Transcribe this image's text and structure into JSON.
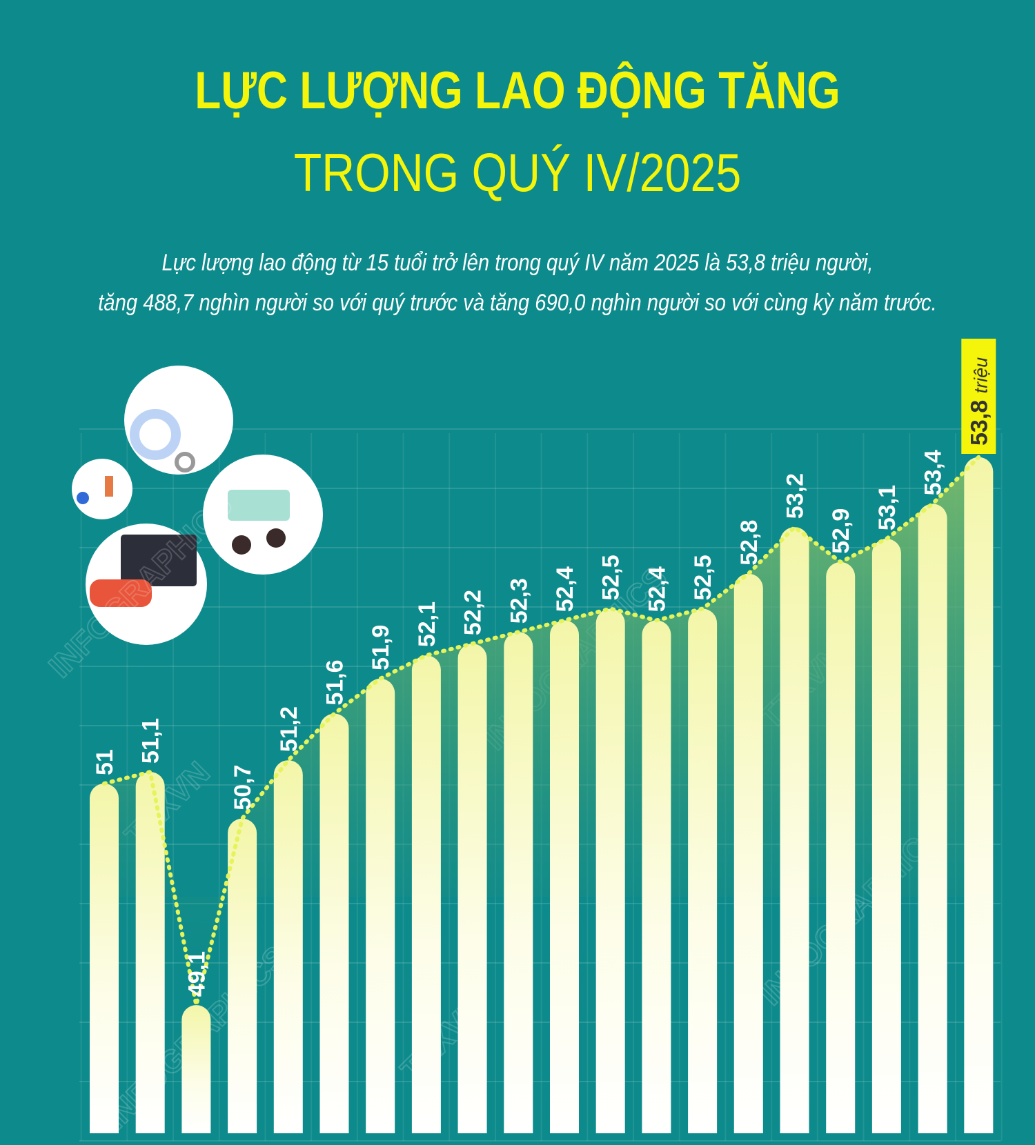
{
  "title": {
    "line1": "LỰC LƯỢNG LAO ĐỘNG TĂNG",
    "line2": "TRONG QUÝ IV/2025"
  },
  "subtitle": {
    "line1": "Lực lượng lao động từ 15 tuổi trở lên trong quý IV năm 2025 là 53,8 triệu người,",
    "line2": "tăng 488,7 nghìn người so với quý trước và tăng 690,0 nghìn người so với cùng kỳ năm trước."
  },
  "watermark": [
    "INFOGRAPHICS",
    "TTXVN"
  ],
  "colors": {
    "background": "#0d8a8b",
    "title": "#f4f50a",
    "highlight": "#f4f50a",
    "area": "#6db36a",
    "line": "#e6f35a"
  },
  "chart_data": {
    "type": "bar",
    "categories": [],
    "values": [
      51,
      51.1,
      49.1,
      50.7,
      51.2,
      51.6,
      51.9,
      52.1,
      52.2,
      52.3,
      52.4,
      52.5,
      52.4,
      52.5,
      52.8,
      53.2,
      52.9,
      53.1,
      53.4,
      53.8
    ],
    "labels": [
      "51",
      "51,1",
      "49,1",
      "50,7",
      "51,2",
      "51,6",
      "51,9",
      "52,1",
      "52,2",
      "52,3",
      "52,4",
      "52,5",
      "52,4",
      "52,5",
      "52,8",
      "53,2",
      "52,9",
      "53,1",
      "53,4",
      "53,8"
    ],
    "highlight_unit": "triệu",
    "ylim": [
      48,
      54
    ],
    "grid": true,
    "overlay": "dotted line with shaded area through bar tops"
  }
}
